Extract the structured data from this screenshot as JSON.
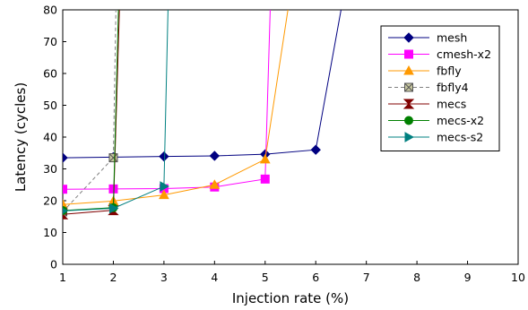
{
  "chart_data": {
    "type": "line",
    "title": "",
    "xlabel": "Injection rate (%)",
    "ylabel": "Latency (cycles)",
    "xlim": [
      1,
      10
    ],
    "ylim": [
      0,
      80
    ],
    "x_ticks": [
      1,
      2,
      3,
      4,
      5,
      6,
      7,
      8,
      9,
      10
    ],
    "y_ticks": [
      0,
      10,
      20,
      30,
      40,
      50,
      60,
      70,
      80
    ],
    "grid": false,
    "legend_position": "top-right",
    "series": [
      {
        "name": "mesh",
        "color": "#000080",
        "marker": "diamond",
        "dash": "",
        "points": [
          [
            1,
            33.5
          ],
          [
            2,
            33.7
          ],
          [
            3,
            33.9
          ],
          [
            4,
            34.1
          ],
          [
            5,
            34.6
          ],
          [
            6,
            36
          ],
          [
            6.5,
            80
          ]
        ]
      },
      {
        "name": "cmesh-x2",
        "color": "#ff00ff",
        "marker": "square",
        "dash": "",
        "points": [
          [
            1,
            23.6
          ],
          [
            2,
            23.7
          ],
          [
            3,
            23.8
          ],
          [
            4,
            24.3
          ],
          [
            5,
            26.8
          ],
          [
            5.1,
            80
          ]
        ]
      },
      {
        "name": "fbfly",
        "color": "#ff9900",
        "marker": "triangle",
        "dash": "",
        "points": [
          [
            1,
            18.8
          ],
          [
            2,
            19.9
          ],
          [
            3,
            21.8
          ],
          [
            4,
            25
          ],
          [
            5,
            33
          ],
          [
            5.45,
            80
          ]
        ]
      },
      {
        "name": "fbfly4",
        "color": "#808080",
        "marker": "crossbox",
        "dash": "4,3",
        "points": [
          [
            1,
            16.5
          ],
          [
            2,
            33.5
          ],
          [
            2.05,
            80
          ]
        ]
      },
      {
        "name": "mecs",
        "color": "#800000",
        "marker": "hourglass",
        "dash": "",
        "points": [
          [
            1,
            15.7
          ],
          [
            2,
            17
          ],
          [
            2.12,
            80
          ]
        ]
      },
      {
        "name": "mecs-x2",
        "color": "#008000",
        "marker": "circle",
        "dash": "",
        "points": [
          [
            1,
            16.9
          ],
          [
            2,
            17.8
          ],
          [
            2.1,
            80
          ]
        ]
      },
      {
        "name": "mecs-s2",
        "color": "#008080",
        "marker": "triangle-right",
        "dash": "",
        "points": [
          [
            1,
            16.8
          ],
          [
            2,
            17.6
          ],
          [
            3,
            24.5
          ],
          [
            3.08,
            80
          ]
        ]
      }
    ]
  }
}
